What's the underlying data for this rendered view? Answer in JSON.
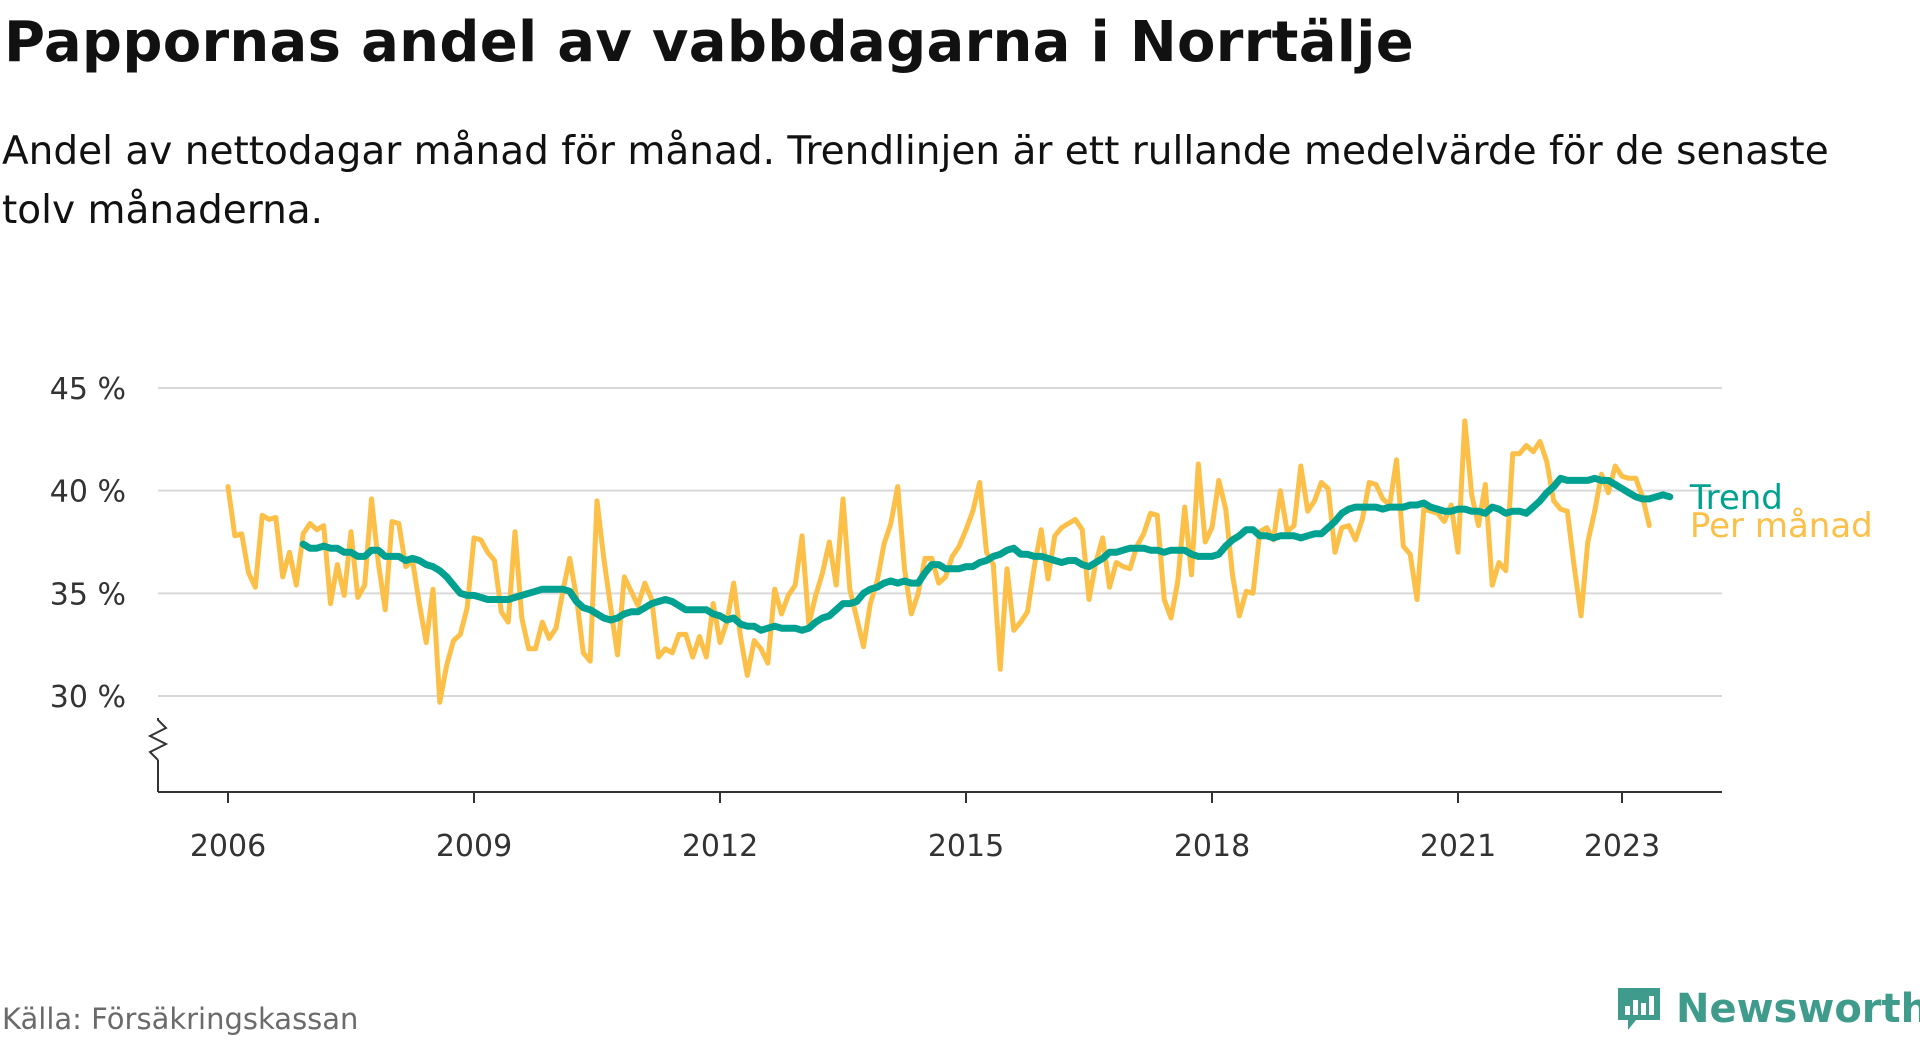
{
  "title": "Pappornas andel av vabbdagarna i Norrtälje",
  "subtitle": "Andel av nettodagar månad för månad. Trendlinjen är ett rullande medelvärde för de senaste tolv månaderna.",
  "source": "Källa: Försäkringskassan",
  "brand": {
    "name": "Newsworthy",
    "icon": "newsworthy-logo-icon"
  },
  "colors": {
    "monthly": "#fcbf47",
    "trend": "#00a190",
    "grid": "#d9d9d9",
    "axis": "#333333"
  },
  "chart_data": {
    "type": "line",
    "ylim": [
      25,
      45
    ],
    "yticks": [
      30,
      35,
      40,
      45
    ],
    "ytick_labels": [
      "30 %",
      "35 %",
      "40 %",
      "45 %"
    ],
    "y_axis_break": true,
    "xlim": [
      "2005-10",
      "2024-08"
    ],
    "xticks": [
      "2006-01",
      "2009-01",
      "2012-01",
      "2015-01",
      "2018-01",
      "2021-01",
      "2023-01"
    ],
    "xtick_labels": [
      "2006",
      "2009",
      "2012",
      "2015",
      "2018",
      "2021",
      "2023"
    ],
    "grid": true,
    "series": [
      {
        "name": "Per månad",
        "color": "#fcbf47",
        "x_start": "2006-01",
        "frequency": "monthly",
        "values": [
          40.2,
          37.8,
          37.9,
          36.0,
          35.3,
          38.8,
          38.6,
          38.7,
          35.8,
          37.0,
          35.4,
          37.9,
          38.4,
          38.1,
          38.3,
          34.5,
          36.4,
          34.9,
          38.0,
          34.8,
          35.4,
          39.6,
          36.5,
          34.2,
          38.5,
          38.4,
          36.3,
          36.6,
          34.5,
          32.6,
          35.2,
          29.7,
          31.5,
          32.7,
          33.0,
          34.3,
          37.7,
          37.6,
          37.0,
          36.6,
          34.1,
          33.6,
          38.0,
          33.8,
          32.3,
          32.3,
          33.6,
          32.8,
          33.3,
          35.1,
          36.7,
          34.8,
          32.1,
          31.7,
          39.5,
          36.7,
          34.3,
          32.0,
          35.8,
          35.1,
          34.4,
          35.5,
          34.7,
          31.9,
          32.3,
          32.1,
          33.0,
          33.0,
          31.9,
          32.9,
          31.9,
          34.5,
          32.6,
          33.6,
          35.5,
          32.9,
          31.0,
          32.7,
          32.3,
          31.6,
          35.2,
          34.0,
          34.9,
          35.4,
          37.8,
          33.5,
          34.9,
          36.0,
          37.5,
          35.4,
          39.6,
          35.2,
          33.8,
          32.4,
          34.5,
          35.6,
          37.4,
          38.4,
          40.2,
          36.2,
          34.0,
          35.0,
          36.7,
          36.7,
          35.5,
          35.8,
          36.8,
          37.3,
          38.1,
          39.0,
          40.4,
          37.0,
          36.4,
          31.3,
          36.2,
          33.2,
          33.6,
          34.1,
          36.3,
          38.1,
          35.7,
          37.8,
          38.2,
          38.4,
          38.6,
          38.1,
          34.7,
          36.5,
          37.7,
          35.3,
          36.5,
          36.3,
          36.2,
          37.3,
          37.9,
          38.9,
          38.8,
          34.7,
          33.8,
          35.6,
          39.2,
          35.9,
          41.3,
          37.5,
          38.2,
          40.5,
          39.1,
          35.9,
          33.9,
          35.1,
          35.0,
          38.0,
          38.2,
          37.6,
          40.0,
          38.0,
          38.3,
          41.2,
          39.0,
          39.5,
          40.4,
          40.1,
          37.0,
          38.2,
          38.3,
          37.6,
          38.6,
          40.4,
          40.3,
          39.6,
          39.3,
          41.5,
          37.3,
          36.9,
          34.7,
          39.1,
          39.0,
          38.9,
          38.5,
          39.3,
          37.0,
          43.4,
          39.8,
          38.3,
          40.3,
          35.4,
          36.5,
          36.1,
          41.8,
          41.8,
          42.2,
          41.9,
          42.4,
          41.4,
          39.5,
          39.1,
          39.0,
          36.3,
          33.9,
          37.5,
          39.0,
          40.8,
          39.9,
          41.2,
          40.7,
          40.6,
          40.6,
          39.7,
          38.3
        ]
      },
      {
        "name": "Trend",
        "color": "#00a190",
        "x_start": "2006-12",
        "frequency": "monthly",
        "values": [
          37.4,
          37.2,
          37.2,
          37.3,
          37.2,
          37.2,
          37.0,
          37.0,
          36.8,
          36.8,
          37.1,
          37.1,
          36.8,
          36.8,
          36.8,
          36.6,
          36.7,
          36.6,
          36.4,
          36.3,
          36.1,
          35.8,
          35.4,
          35.0,
          34.9,
          34.9,
          34.8,
          34.7,
          34.7,
          34.7,
          34.7,
          34.8,
          34.9,
          35.0,
          35.1,
          35.2,
          35.2,
          35.2,
          35.2,
          35.1,
          34.6,
          34.3,
          34.2,
          34.0,
          33.8,
          33.7,
          33.8,
          34.0,
          34.1,
          34.1,
          34.3,
          34.5,
          34.6,
          34.7,
          34.6,
          34.4,
          34.2,
          34.2,
          34.2,
          34.2,
          34.0,
          33.9,
          33.7,
          33.8,
          33.5,
          33.4,
          33.4,
          33.2,
          33.3,
          33.4,
          33.3,
          33.3,
          33.3,
          33.2,
          33.3,
          33.6,
          33.8,
          33.9,
          34.2,
          34.5,
          34.5,
          34.6,
          35.0,
          35.2,
          35.3,
          35.5,
          35.6,
          35.5,
          35.6,
          35.5,
          35.5,
          36.0,
          36.4,
          36.4,
          36.2,
          36.2,
          36.2,
          36.3,
          36.3,
          36.5,
          36.6,
          36.8,
          36.9,
          37.1,
          37.2,
          36.9,
          36.9,
          36.8,
          36.8,
          36.7,
          36.6,
          36.5,
          36.6,
          36.6,
          36.4,
          36.3,
          36.5,
          36.7,
          37.0,
          37.0,
          37.1,
          37.2,
          37.2,
          37.2,
          37.1,
          37.1,
          37.0,
          37.1,
          37.1,
          37.1,
          36.9,
          36.8,
          36.8,
          36.8,
          36.9,
          37.3,
          37.6,
          37.8,
          38.1,
          38.1,
          37.8,
          37.8,
          37.7,
          37.8,
          37.8,
          37.8,
          37.7,
          37.8,
          37.9,
          37.9,
          38.2,
          38.5,
          38.9,
          39.1,
          39.2,
          39.2,
          39.2,
          39.2,
          39.1,
          39.2,
          39.2,
          39.2,
          39.3,
          39.3,
          39.4,
          39.2,
          39.1,
          39.0,
          39.0,
          39.1,
          39.1,
          39.0,
          39.0,
          38.9,
          39.2,
          39.1,
          38.9,
          39.0,
          39.0,
          38.9,
          39.2,
          39.5,
          39.9,
          40.2,
          40.6,
          40.5,
          40.5,
          40.5,
          40.5,
          40.6,
          40.5,
          40.5,
          40.3,
          40.1,
          39.9,
          39.7,
          39.6,
          39.6,
          39.7,
          39.8,
          39.7
        ]
      }
    ],
    "end_labels": [
      "Trend",
      "Per månad"
    ]
  }
}
